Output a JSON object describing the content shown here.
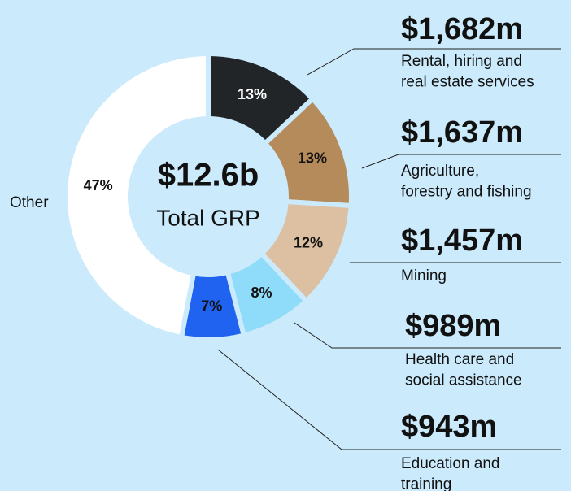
{
  "chart_data": {
    "type": "donut",
    "center_value": "$12.6b",
    "center_label": "Total GRP",
    "categories": [
      [
        "Rental, hiring and",
        "real estate services"
      ],
      [
        "Agriculture,",
        "forestry and fishing"
      ],
      [
        "Mining"
      ],
      [
        "Health care and",
        "social assistance"
      ],
      [
        "Education and",
        "training"
      ],
      [
        "Other"
      ]
    ],
    "values": [
      13,
      13,
      12,
      8,
      7,
      47
    ],
    "value_labels": [
      "13%",
      "13%",
      "12%",
      "8%",
      "7%",
      "47%"
    ],
    "amounts": [
      "$1,682m",
      "$1,637m",
      "$1,457m",
      "$989m",
      "$943m",
      null
    ],
    "colors": [
      "#212527",
      "#b68b5b",
      "#dcc0a1",
      "#8edbfa",
      "#1f63f0",
      "#ffffff"
    ]
  }
}
